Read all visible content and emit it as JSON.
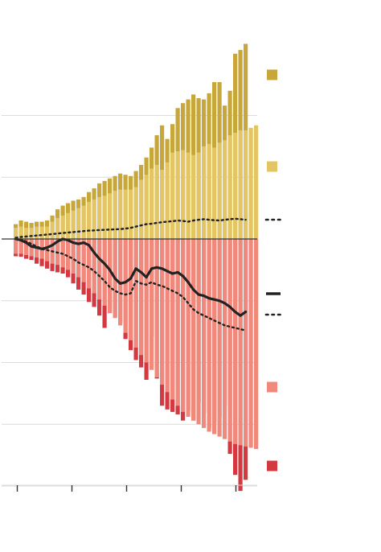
{
  "chart_data": {
    "type": "bar",
    "title": "",
    "xlabel": "",
    "ylabel": "",
    "grid": true,
    "ylim": [
      -10.2,
      7.5
    ],
    "gridlines": [
      5,
      2.5,
      -2.5,
      -5,
      -7.5,
      -10
    ],
    "x_ticks": [
      0,
      13,
      26,
      39,
      52
    ],
    "colors": {
      "upper_light": "#e3c564",
      "upper_dark": "#c8a73a",
      "lower_light": "#f0897b",
      "lower_dark": "#d43840",
      "line": "#222222",
      "grid": "#dcdcdc",
      "axis": "#333333"
    },
    "legend": [
      {
        "swatch": "upper_dark"
      },
      {
        "swatch": "upper_light"
      },
      {
        "swatch": "dotted-line"
      },
      {
        "swatch": "solid-line"
      },
      {
        "swatch": "dotted-line"
      },
      {
        "swatch": "lower_light"
      },
      {
        "swatch": "lower_dark"
      }
    ],
    "series": [
      {
        "key": "upper_light",
        "values": [
          0.45,
          0.5,
          0.45,
          0.45,
          0.5,
          0.5,
          0.5,
          0.7,
          0.85,
          0.95,
          1.05,
          1.15,
          1.25,
          1.35,
          1.5,
          1.6,
          1.7,
          1.75,
          1.85,
          1.95,
          2.0,
          2.0,
          2.0,
          2.1,
          2.4,
          2.6,
          2.85,
          3.0,
          2.8,
          3.1,
          3.5,
          3.55,
          3.6,
          3.5,
          3.4,
          3.5,
          3.75,
          3.85,
          3.7,
          3.9,
          4.0,
          4.2,
          4.3,
          4.4,
          4.4,
          4.5,
          4.6
        ]
      },
      {
        "key": "upper_dark",
        "values": [
          0.6,
          0.75,
          0.7,
          0.65,
          0.7,
          0.7,
          0.75,
          0.95,
          1.2,
          1.35,
          1.45,
          1.55,
          1.6,
          1.7,
          1.9,
          2.05,
          2.25,
          2.35,
          2.45,
          2.55,
          2.65,
          2.6,
          2.55,
          2.75,
          3.0,
          3.3,
          3.7,
          4.2,
          4.6,
          4.05,
          4.65,
          5.3,
          5.5,
          5.65,
          5.85,
          5.7,
          5.65,
          5.9,
          6.35,
          6.35,
          5.4,
          6.0,
          7.5,
          7.65,
          7.9
        ]
      },
      {
        "key": "lower_light",
        "values": [
          -0.6,
          -0.6,
          -0.65,
          -0.7,
          -0.75,
          -0.8,
          -0.9,
          -1.0,
          -1.05,
          -1.15,
          -1.25,
          -1.4,
          -1.55,
          -1.75,
          -2.0,
          -2.2,
          -2.45,
          -2.7,
          -3.0,
          -3.2,
          -3.5,
          -3.8,
          -4.1,
          -4.4,
          -4.7,
          -5.0,
          -5.3,
          -5.6,
          -5.9,
          -6.2,
          -6.5,
          -6.75,
          -7.0,
          -7.2,
          -7.35,
          -7.5,
          -7.65,
          -7.8,
          -7.9,
          -8.0,
          -8.1,
          -8.2,
          -8.3,
          -8.35,
          -8.4,
          -8.45,
          -8.5
        ]
      },
      {
        "key": "lower_dark",
        "values": [
          -0.7,
          -0.72,
          -0.8,
          -0.85,
          -1.0,
          -1.1,
          -1.2,
          -1.3,
          -1.35,
          -1.4,
          -1.55,
          -1.8,
          -2.05,
          -2.25,
          -2.55,
          -2.75,
          -3.1,
          -3.6,
          -3.0,
          -3.15,
          -3.4,
          -4.05,
          -4.5,
          -4.9,
          -5.2,
          -5.7,
          -3.95,
          -5.65,
          -6.75,
          -6.9,
          -7.0,
          -7.1,
          -7.35,
          -6.95,
          -7.35,
          -6.6,
          -7.05,
          -7.65,
          -7.4,
          -7.2,
          -6.75,
          -8.7,
          -9.55,
          -10.2,
          -9.75
        ]
      },
      {
        "key": "solid-line",
        "values": [
          0.0,
          -0.05,
          -0.15,
          -0.3,
          -0.35,
          -0.4,
          -0.35,
          -0.25,
          -0.1,
          0.0,
          -0.05,
          -0.15,
          -0.2,
          -0.15,
          -0.25,
          -0.55,
          -0.8,
          -1.0,
          -1.25,
          -1.6,
          -1.8,
          -1.75,
          -1.6,
          -1.2,
          -1.35,
          -1.55,
          -1.2,
          -1.15,
          -1.2,
          -1.3,
          -1.4,
          -1.35,
          -1.5,
          -1.75,
          -2.05,
          -2.25,
          -2.3,
          -2.4,
          -2.45,
          -2.5,
          -2.6,
          -2.75,
          -2.95,
          -3.1,
          -2.95
        ]
      },
      {
        "key": "dotted-upper",
        "values": [
          0.05,
          0.08,
          0.1,
          0.12,
          0.14,
          0.16,
          0.18,
          0.2,
          0.22,
          0.24,
          0.26,
          0.28,
          0.3,
          0.32,
          0.34,
          0.35,
          0.36,
          0.37,
          0.38,
          0.39,
          0.4,
          0.42,
          0.45,
          0.5,
          0.55,
          0.6,
          0.62,
          0.65,
          0.68,
          0.7,
          0.72,
          0.75,
          0.73,
          0.7,
          0.75,
          0.78,
          0.8,
          0.78,
          0.76,
          0.75,
          0.78,
          0.8,
          0.82,
          0.8,
          0.78
        ]
      },
      {
        "key": "dotted-lower",
        "values": [
          0.05,
          -0.02,
          -0.1,
          -0.2,
          -0.3,
          -0.4,
          -0.45,
          -0.5,
          -0.55,
          -0.6,
          -0.7,
          -0.8,
          -0.95,
          -1.05,
          -1.15,
          -1.3,
          -1.5,
          -1.7,
          -1.95,
          -2.1,
          -2.2,
          -2.25,
          -2.2,
          -1.7,
          -1.8,
          -1.85,
          -1.75,
          -1.85,
          -1.9,
          -2.0,
          -2.1,
          -2.2,
          -2.35,
          -2.6,
          -2.85,
          -3.0,
          -3.1,
          -3.2,
          -3.3,
          -3.4,
          -3.5,
          -3.55,
          -3.6,
          -3.65,
          -3.7
        ]
      }
    ]
  }
}
